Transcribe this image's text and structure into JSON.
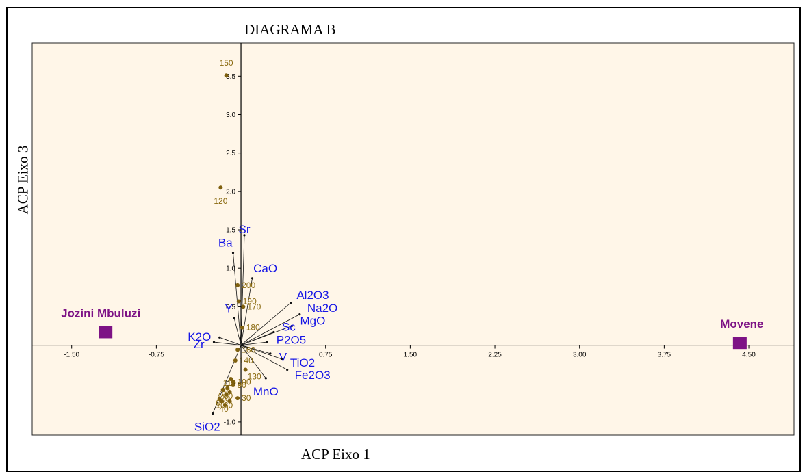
{
  "chart_data": {
    "type": "scatter",
    "title": "DIAGRAMA B",
    "xlabel": "ACP Eixo 1",
    "ylabel": "ACP Eixo 3",
    "xlim": [
      -1.85,
      4.9
    ],
    "ylim": [
      -1.17,
      3.93
    ],
    "x_ticks": [
      -1.5,
      -0.75,
      0.75,
      1.5,
      2.25,
      3.0,
      3.75,
      4.5
    ],
    "x_tick_labels": [
      "-1.50",
      "-0.75",
      "0.75",
      "1.50",
      "2.25",
      "3.00",
      "3.75",
      "4.50"
    ],
    "y_ticks": [
      -1.0,
      -0.5,
      0.5,
      1.0,
      1.5,
      2.0,
      2.5,
      3.0,
      3.5
    ],
    "y_tick_labels": [
      "-1.0",
      "-0.5",
      "0.5",
      "1.0",
      "1.5",
      "2.0",
      "2.5",
      "3.0",
      "3.5"
    ],
    "grid": false,
    "background": "#fff6e8",
    "colors": {
      "vectors": "#1515e6",
      "points": "#7f600f",
      "point_labels": "#8a6a10",
      "groups": "#7d1285",
      "axes": "#000000"
    },
    "vectors": [
      {
        "label": "Sr",
        "x": 0.03,
        "y": 1.43
      },
      {
        "label": "Ba",
        "x": -0.07,
        "y": 1.2
      },
      {
        "label": "CaO",
        "x": 0.1,
        "y": 0.87
      },
      {
        "label": "Al2O3",
        "x": 0.44,
        "y": 0.55
      },
      {
        "label": "Na2O",
        "x": 0.52,
        "y": 0.4
      },
      {
        "label": "MgO",
        "x": 0.45,
        "y": 0.25
      },
      {
        "label": "Sc",
        "x": 0.29,
        "y": 0.17
      },
      {
        "label": "P2O5",
        "x": 0.23,
        "y": 0.04
      },
      {
        "label": "V",
        "x": 0.26,
        "y": -0.11
      },
      {
        "label": "TiO2",
        "x": 0.36,
        "y": -0.18
      },
      {
        "label": "Fe2O3",
        "x": 0.41,
        "y": -0.32
      },
      {
        "label": "MnO",
        "x": 0.22,
        "y": -0.43
      },
      {
        "label": "SiO2",
        "x": -0.25,
        "y": -0.89
      },
      {
        "label": "Zr",
        "x": -0.24,
        "y": 0.04
      },
      {
        "label": "K2O",
        "x": -0.19,
        "y": 0.1
      },
      {
        "label": "Y",
        "x": -0.06,
        "y": 0.35
      }
    ],
    "points": [
      {
        "label": "150",
        "x": -0.13,
        "y": 3.51
      },
      {
        "label": "120",
        "x": -0.18,
        "y": 2.05
      },
      {
        "label": "200",
        "x": -0.03,
        "y": 0.78
      },
      {
        "label": "190",
        "x": -0.02,
        "y": 0.57
      },
      {
        "label": "170",
        "x": 0.02,
        "y": 0.5
      },
      {
        "label": "180",
        "x": 0.01,
        "y": 0.23
      },
      {
        "label": "160",
        "x": -0.03,
        "y": -0.06
      },
      {
        "label": "140",
        "x": -0.05,
        "y": -0.2
      },
      {
        "label": "130",
        "x": 0.04,
        "y": -0.32
      },
      {
        "label": "110",
        "x": -0.09,
        "y": -0.44
      },
      {
        "label": "100",
        "x": -0.07,
        "y": -0.48
      },
      {
        "label": "90",
        "x": -0.07,
        "y": -0.52
      },
      {
        "label": "50",
        "x": -0.12,
        "y": -0.56
      },
      {
        "label": "80",
        "x": -0.1,
        "y": -0.61
      },
      {
        "label": "70",
        "x": -0.16,
        "y": -0.58
      },
      {
        "label": "20",
        "x": -0.13,
        "y": -0.64
      },
      {
        "label": "0",
        "x": -0.19,
        "y": -0.7
      },
      {
        "label": "10",
        "x": -0.17,
        "y": -0.73
      },
      {
        "label": "60",
        "x": -0.1,
        "y": -0.73
      },
      {
        "label": "40",
        "x": -0.14,
        "y": -0.78
      },
      {
        "label": "30",
        "x": -0.03,
        "y": -0.69
      }
    ],
    "groups": [
      {
        "label": "Jozini Mbuluzi",
        "x": -1.2,
        "y": 0.17
      },
      {
        "label": "Movene",
        "x": 4.42,
        "y": 0.03
      }
    ]
  }
}
